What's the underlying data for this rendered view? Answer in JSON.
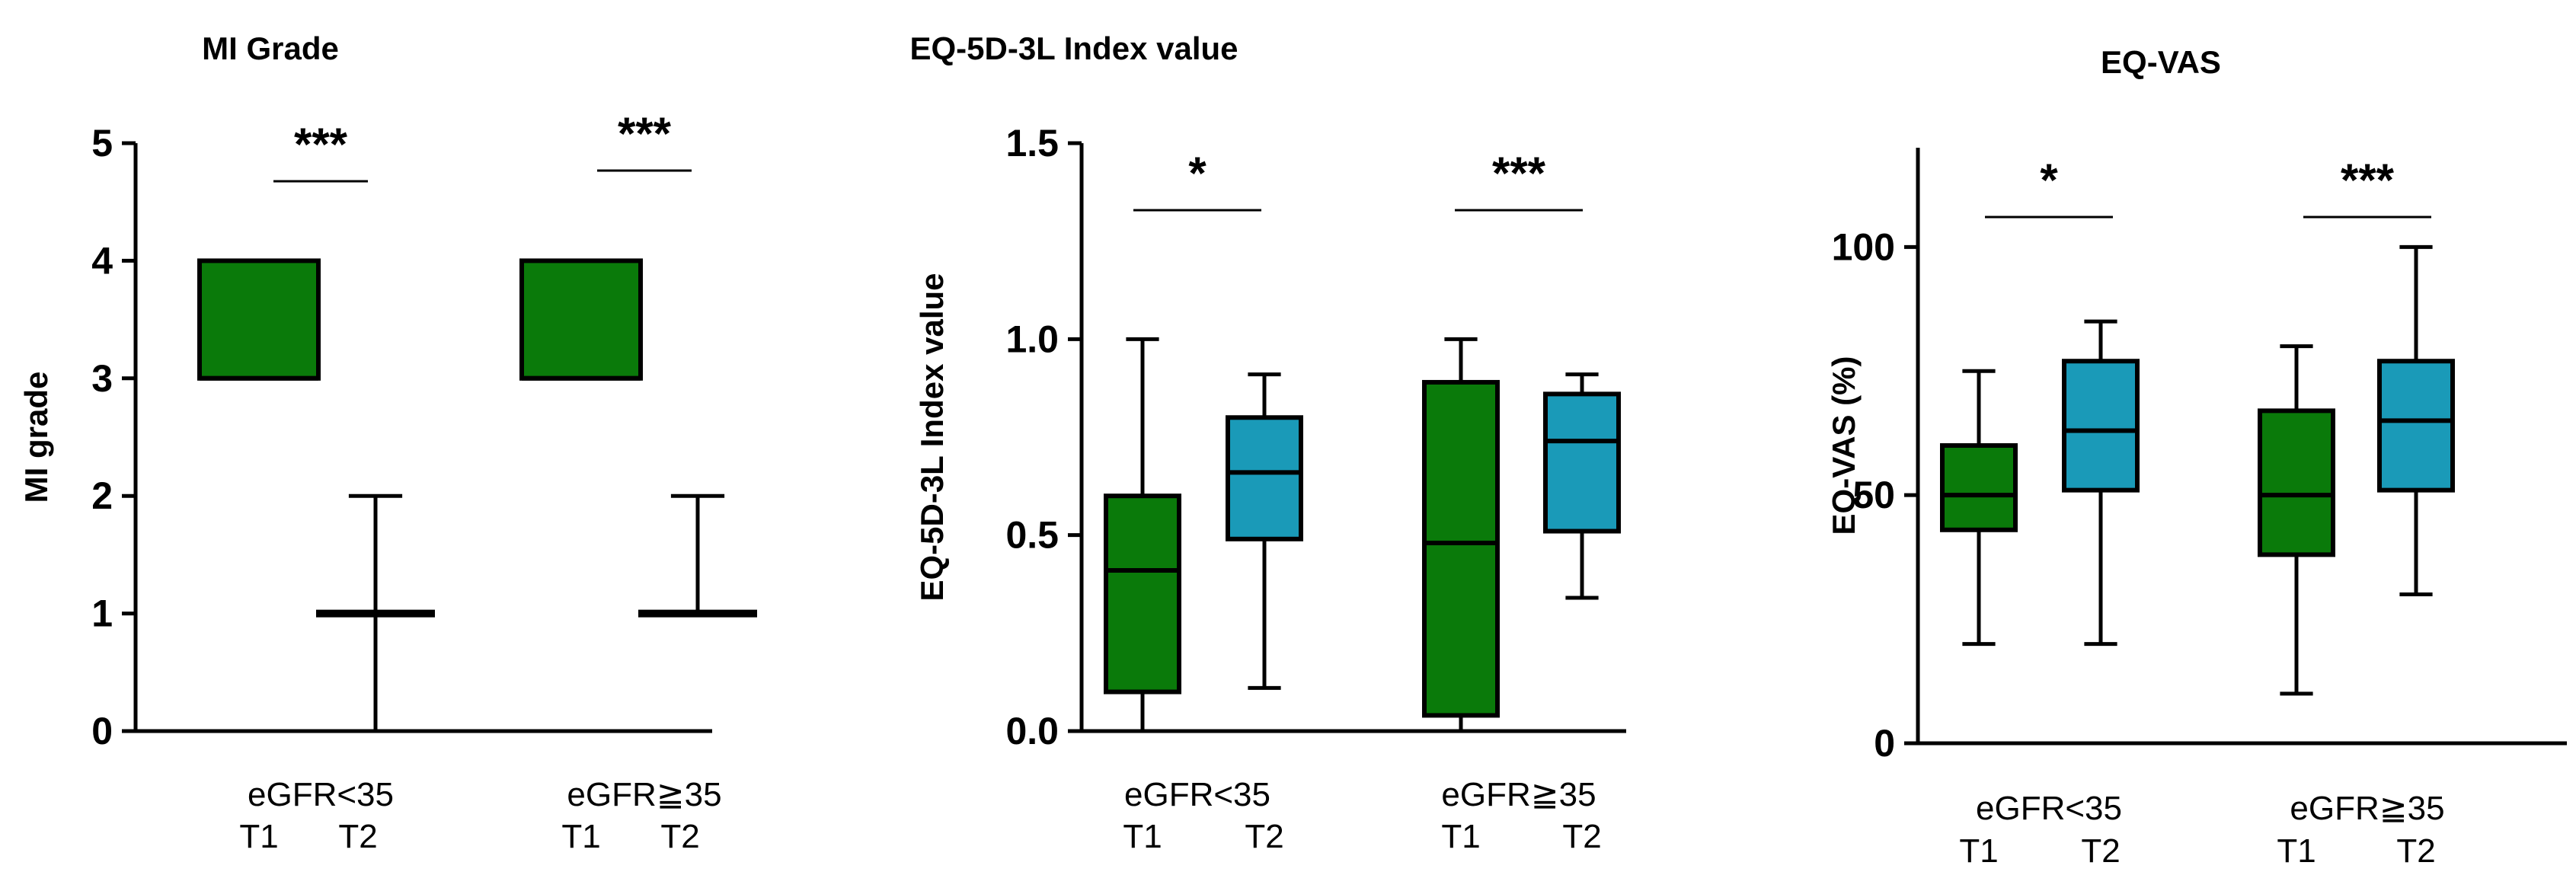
{
  "colors": {
    "t1": "#0a7a0a",
    "t2": "#1a9ab8",
    "ink": "#000000"
  },
  "chart_data": [
    {
      "type": "box",
      "title": "MI Grade",
      "ylabel": "MI grade",
      "ylim": [
        0,
        5
      ],
      "yticks": [
        0,
        1,
        2,
        3,
        4,
        5
      ],
      "groups": [
        {
          "label": "eGFR<35",
          "t1": "T1",
          "t2": "T2",
          "significance": "***"
        },
        {
          "label": "eGFR≧35",
          "t1": "T1",
          "t2": "T2",
          "significance": "***"
        }
      ],
      "boxes": [
        {
          "series": "T1",
          "min": 3,
          "q1": 3,
          "median": 3,
          "q3": 4,
          "max": 4
        },
        {
          "series": "T2",
          "min": 0,
          "q1": 1,
          "median": 1,
          "q3": 1,
          "max": 2
        },
        {
          "series": "T1",
          "min": 3,
          "q1": 3,
          "median": 3,
          "q3": 4,
          "max": 4
        },
        {
          "series": "T2",
          "min": 1,
          "q1": 1,
          "median": 1,
          "q3": 1,
          "max": 2
        }
      ]
    },
    {
      "type": "box",
      "title": "EQ-5D-3L Index value",
      "ylabel": "EQ-5D-3L Index value",
      "ylim": [
        0,
        1.5
      ],
      "yticks": [
        0,
        0.5,
        1,
        1.5
      ],
      "ytick_labels": [
        "0.0",
        "0.5",
        "1.0",
        "1.5"
      ],
      "groups": [
        {
          "label": "eGFR<35",
          "t1": "T1",
          "t2": "T2",
          "significance": "*"
        },
        {
          "label": "eGFR≧35",
          "t1": "T1",
          "t2": "T2",
          "significance": "***"
        }
      ],
      "boxes": [
        {
          "series": "T1",
          "min": 0.0,
          "q1": 0.1,
          "median": 0.41,
          "q3": 0.6,
          "max": 1.0
        },
        {
          "series": "T2",
          "min": 0.11,
          "q1": 0.49,
          "median": 0.66,
          "q3": 0.8,
          "max": 0.91
        },
        {
          "series": "T1",
          "min": 0.0,
          "q1": 0.04,
          "median": 0.48,
          "q3": 0.89,
          "max": 1.0
        },
        {
          "series": "T2",
          "min": 0.34,
          "q1": 0.51,
          "median": 0.74,
          "q3": 0.86,
          "max": 0.91
        }
      ]
    },
    {
      "type": "box",
      "title": "EQ-VAS",
      "ylabel": "EQ-VAS (%)",
      "ylim": [
        0,
        120
      ],
      "yticks": [
        0,
        50,
        100
      ],
      "groups": [
        {
          "label": "eGFR<35",
          "t1": "T1",
          "t2": "T2",
          "significance": "*"
        },
        {
          "label": "eGFR≧35",
          "t1": "T1",
          "t2": "T2",
          "significance": "***"
        }
      ],
      "boxes": [
        {
          "series": "T1",
          "min": 20,
          "q1": 43,
          "median": 50,
          "q3": 60,
          "max": 75
        },
        {
          "series": "T2",
          "min": 20,
          "q1": 51,
          "median": 63,
          "q3": 77,
          "max": 85
        },
        {
          "series": "T1",
          "min": 10,
          "q1": 38,
          "median": 50,
          "q3": 67,
          "max": 80
        },
        {
          "series": "T2",
          "min": 30,
          "q1": 51,
          "median": 65,
          "q3": 77,
          "max": 100
        }
      ]
    }
  ]
}
